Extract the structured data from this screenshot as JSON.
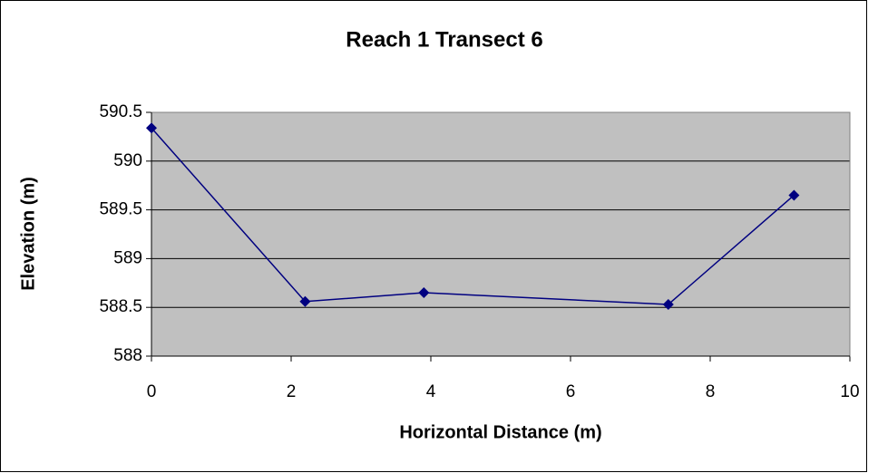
{
  "chart_data": {
    "type": "scatter-line",
    "title": "Reach 1 Transect 6",
    "x_label": "Horizontal Distance (m)",
    "y_label": "Elevation (m)",
    "x": [
      0,
      2.2,
      3.9,
      7.4,
      9.2
    ],
    "series": [
      {
        "color": "#000080",
        "values": [
          590.34,
          588.56,
          588.65,
          588.53,
          589.65
        ]
      }
    ],
    "xlim": [
      0,
      10
    ],
    "xticks": [
      0,
      2,
      4,
      6,
      8,
      10
    ],
    "ylim": [
      588,
      590.5
    ],
    "yticks": [
      588,
      588.5,
      589,
      589.5,
      590,
      590.5
    ],
    "grid": true
  }
}
